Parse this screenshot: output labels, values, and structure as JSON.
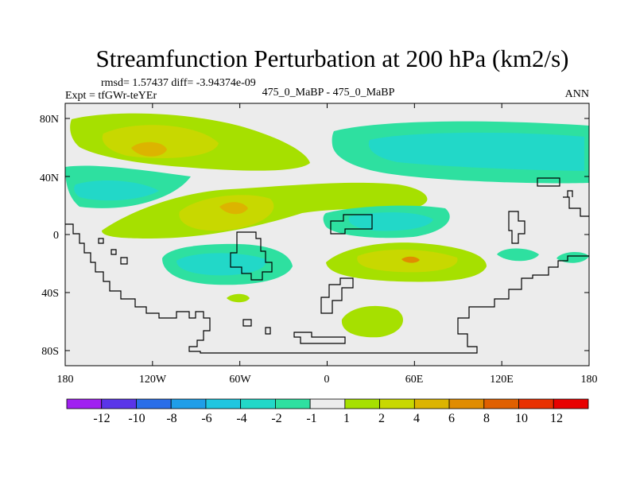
{
  "chart_data": {
    "type": "heatmap",
    "title": "Streamfunction Perturbation at 200 hPa (km2/s)",
    "stats": "rmsd= 1.57437 diff= -3.94374e-09",
    "experiment": "Expt = tfGWr-teYEr",
    "case": "475_0_MaBP - 475_0_MaBP",
    "season": "ANN",
    "x_ticks": [
      "180",
      "120W",
      "60W",
      "0",
      "60E",
      "120E",
      "180"
    ],
    "y_ticks": [
      "80N",
      "40N",
      "0",
      "40S",
      "80S"
    ],
    "x_range_deg": [
      -180,
      180
    ],
    "y_range_deg": [
      -90,
      90
    ],
    "colorbar": {
      "labels": [
        "-12",
        "-10",
        "-8",
        "-6",
        "-4",
        "-2",
        "-1",
        "1",
        "2",
        "4",
        "6",
        "8",
        "10",
        "12"
      ],
      "colors": [
        "#a020f0",
        "#5a35e8",
        "#2a6ee8",
        "#1f9ee8",
        "#1fc6e0",
        "#22d8c8",
        "#2ee0a0",
        "#ececec",
        "#a6e000",
        "#c8d800",
        "#dcb400",
        "#e08c00",
        "#e06000",
        "#e83000",
        "#e80000"
      ]
    },
    "field_colors": {
      "background": "#ececec",
      "pos1": "#a6e000",
      "pos2": "#c8d800",
      "pos3": "#dcb400",
      "pos4": "#e08c00",
      "neg1": "#2ee0a0",
      "neg2": "#22d8c8",
      "neg3": "#1fc6e0"
    }
  }
}
